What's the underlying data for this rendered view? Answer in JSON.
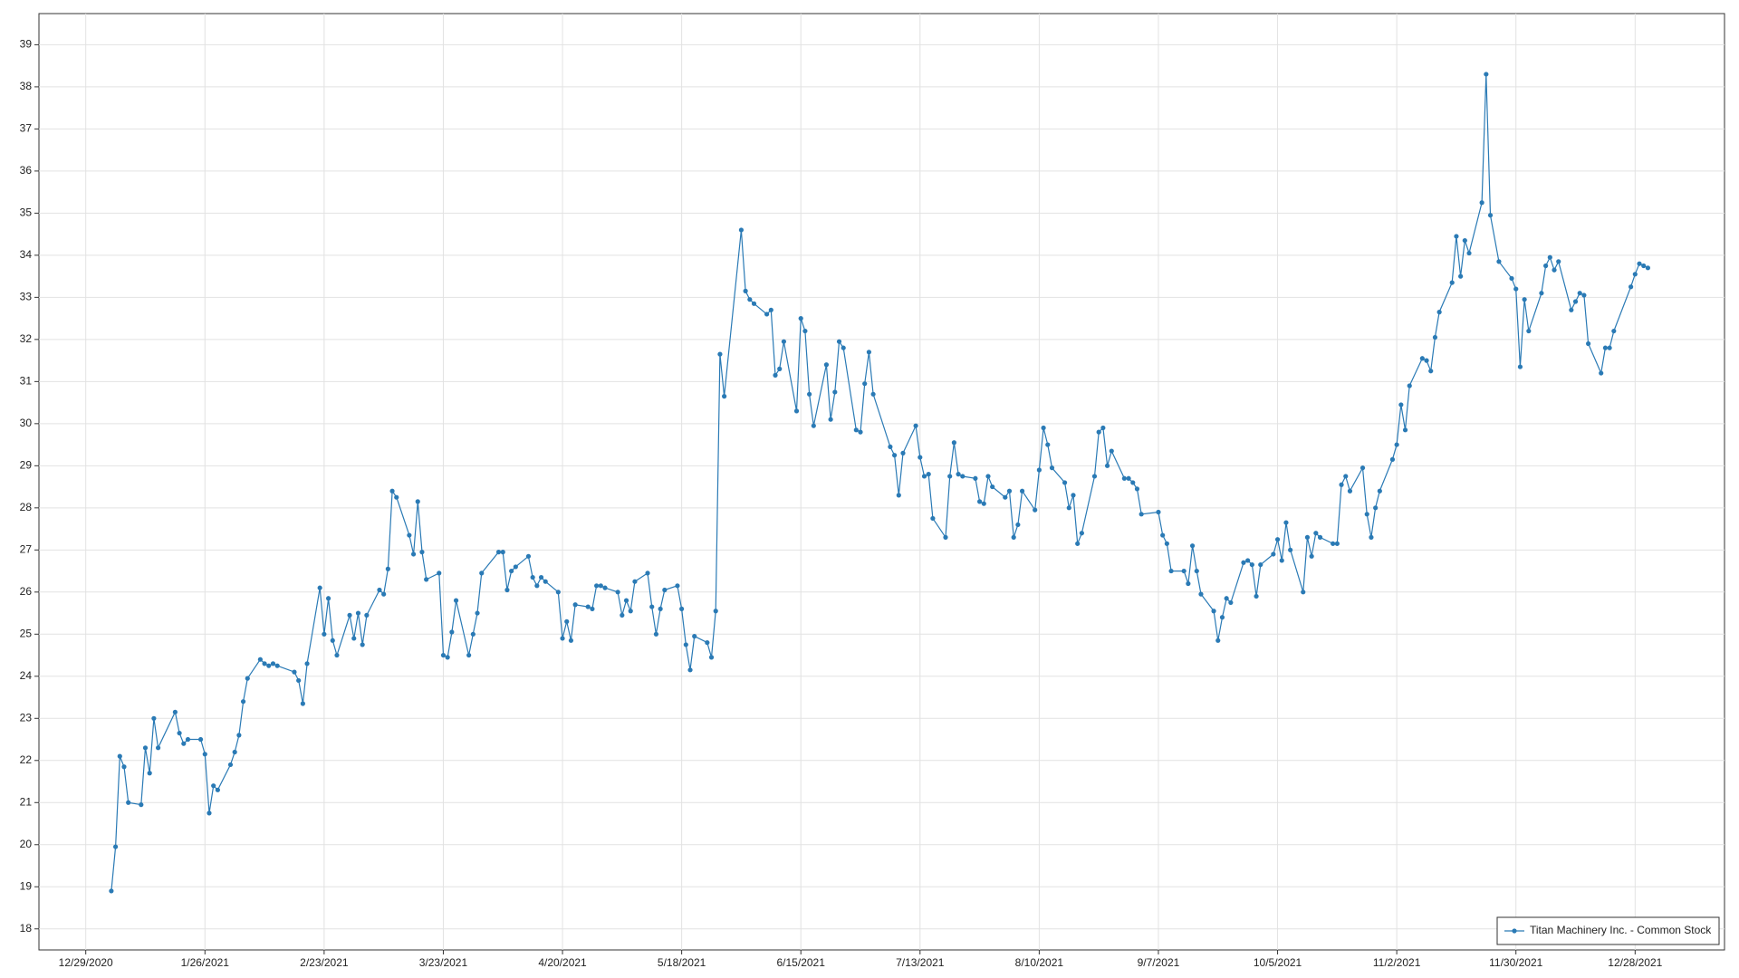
{
  "chart_data": {
    "type": "line",
    "x": [
      "1/4/2021",
      "1/5/2021",
      "1/6/2021",
      "1/7/2021",
      "1/8/2021",
      "1/11/2021",
      "1/12/2021",
      "1/13/2021",
      "1/14/2021",
      "1/15/2021",
      "1/19/2021",
      "1/20/2021",
      "1/21/2021",
      "1/22/2021",
      "1/25/2021",
      "1/26/2021",
      "1/27/2021",
      "1/28/2021",
      "1/29/2021",
      "2/1/2021",
      "2/2/2021",
      "2/3/2021",
      "2/4/2021",
      "2/5/2021",
      "2/8/2021",
      "2/9/2021",
      "2/10/2021",
      "2/11/2021",
      "2/12/2021",
      "2/16/2021",
      "2/17/2021",
      "2/18/2021",
      "2/19/2021",
      "2/22/2021",
      "2/23/2021",
      "2/24/2021",
      "2/25/2021",
      "2/26/2021",
      "3/1/2021",
      "3/2/2021",
      "3/3/2021",
      "3/4/2021",
      "3/5/2021",
      "3/8/2021",
      "3/9/2021",
      "3/10/2021",
      "3/11/2021",
      "3/12/2021",
      "3/15/2021",
      "3/16/2021",
      "3/17/2021",
      "3/18/2021",
      "3/19/2021",
      "3/22/2021",
      "3/23/2021",
      "3/24/2021",
      "3/25/2021",
      "3/26/2021",
      "3/29/2021",
      "3/30/2021",
      "3/31/2021",
      "4/1/2021",
      "4/5/2021",
      "4/6/2021",
      "4/7/2021",
      "4/8/2021",
      "4/9/2021",
      "4/12/2021",
      "4/13/2021",
      "4/14/2021",
      "4/15/2021",
      "4/16/2021",
      "4/19/2021",
      "4/20/2021",
      "4/21/2021",
      "4/22/2021",
      "4/23/2021",
      "4/26/2021",
      "4/27/2021",
      "4/28/2021",
      "4/29/2021",
      "4/30/2021",
      "5/3/2021",
      "5/4/2021",
      "5/5/2021",
      "5/6/2021",
      "5/7/2021",
      "5/10/2021",
      "5/11/2021",
      "5/12/2021",
      "5/13/2021",
      "5/14/2021",
      "5/17/2021",
      "5/18/2021",
      "5/19/2021",
      "5/20/2021",
      "5/21/2021",
      "5/24/2021",
      "5/25/2021",
      "5/26/2021",
      "5/27/2021",
      "5/28/2021",
      "6/1/2021",
      "6/2/2021",
      "6/3/2021",
      "6/4/2021",
      "6/7/2021",
      "6/8/2021",
      "6/9/2021",
      "6/10/2021",
      "6/11/2021",
      "6/14/2021",
      "6/15/2021",
      "6/16/2021",
      "6/17/2021",
      "6/18/2021",
      "6/21/2021",
      "6/22/2021",
      "6/23/2021",
      "6/24/2021",
      "6/25/2021",
      "6/28/2021",
      "6/29/2021",
      "6/30/2021",
      "7/1/2021",
      "7/2/2021",
      "7/6/2021",
      "7/7/2021",
      "7/8/2021",
      "7/9/2021",
      "7/12/2021",
      "7/13/2021",
      "7/14/2021",
      "7/15/2021",
      "7/16/2021",
      "7/19/2021",
      "7/20/2021",
      "7/21/2021",
      "7/22/2021",
      "7/23/2021",
      "7/26/2021",
      "7/27/2021",
      "7/28/2021",
      "7/29/2021",
      "7/30/2021",
      "8/2/2021",
      "8/3/2021",
      "8/4/2021",
      "8/5/2021",
      "8/6/2021",
      "8/9/2021",
      "8/10/2021",
      "8/11/2021",
      "8/12/2021",
      "8/13/2021",
      "8/16/2021",
      "8/17/2021",
      "8/18/2021",
      "8/19/2021",
      "8/20/2021",
      "8/23/2021",
      "8/24/2021",
      "8/25/2021",
      "8/26/2021",
      "8/27/2021",
      "8/30/2021",
      "8/31/2021",
      "9/1/2021",
      "9/2/2021",
      "9/3/2021",
      "9/7/2021",
      "9/8/2021",
      "9/9/2021",
      "9/10/2021",
      "9/13/2021",
      "9/14/2021",
      "9/15/2021",
      "9/16/2021",
      "9/17/2021",
      "9/20/2021",
      "9/21/2021",
      "9/22/2021",
      "9/23/2021",
      "9/24/2021",
      "9/27/2021",
      "9/28/2021",
      "9/29/2021",
      "9/30/2021",
      "10/1/2021",
      "10/4/2021",
      "10/5/2021",
      "10/6/2021",
      "10/7/2021",
      "10/8/2021",
      "10/11/2021",
      "10/12/2021",
      "10/13/2021",
      "10/14/2021",
      "10/15/2021",
      "10/18/2021",
      "10/19/2021",
      "10/20/2021",
      "10/21/2021",
      "10/22/2021",
      "10/25/2021",
      "10/26/2021",
      "10/27/2021",
      "10/28/2021",
      "10/29/2021",
      "11/1/2021",
      "11/2/2021",
      "11/3/2021",
      "11/4/2021",
      "11/5/2021",
      "11/8/2021",
      "11/9/2021",
      "11/10/2021",
      "11/11/2021",
      "11/12/2021",
      "11/15/2021",
      "11/16/2021",
      "11/17/2021",
      "11/18/2021",
      "11/19/2021",
      "11/22/2021",
      "11/23/2021",
      "11/24/2021",
      "11/26/2021",
      "11/29/2021",
      "11/30/2021",
      "12/1/2021",
      "12/2/2021",
      "12/3/2021",
      "12/6/2021",
      "12/7/2021",
      "12/8/2021",
      "12/9/2021",
      "12/10/2021",
      "12/13/2021",
      "12/14/2021",
      "12/15/2021",
      "12/16/2021",
      "12/17/2021",
      "12/20/2021",
      "12/21/2021",
      "12/22/2021",
      "12/23/2021",
      "12/27/2021",
      "12/28/2021",
      "12/29/2021",
      "12/30/2021",
      "12/31/2021"
    ],
    "series": [
      {
        "name": "Titan Machinery Inc. - Common Stock",
        "color": "#2a7ab5",
        "values": [
          18.9,
          19.95,
          22.1,
          21.85,
          21.0,
          20.95,
          22.3,
          21.7,
          23.0,
          22.3,
          23.15,
          22.65,
          22.4,
          22.5,
          22.5,
          22.15,
          20.75,
          21.4,
          21.3,
          21.9,
          22.2,
          22.6,
          23.4,
          23.95,
          24.4,
          24.3,
          24.25,
          24.3,
          24.25,
          24.1,
          23.9,
          23.35,
          24.3,
          26.1,
          25.0,
          25.85,
          24.85,
          24.5,
          25.45,
          24.9,
          25.5,
          24.75,
          25.45,
          26.05,
          25.95,
          26.55,
          28.4,
          28.25,
          27.35,
          26.9,
          28.15,
          26.95,
          26.3,
          26.45,
          24.5,
          24.45,
          25.05,
          25.8,
          24.5,
          25.0,
          25.5,
          26.45,
          26.95,
          26.95,
          26.05,
          26.5,
          26.6,
          26.85,
          26.35,
          26.15,
          26.35,
          26.25,
          26.0,
          24.9,
          25.3,
          24.85,
          25.7,
          25.65,
          25.6,
          26.15,
          26.15,
          26.1,
          26.0,
          25.45,
          25.8,
          25.55,
          26.25,
          26.45,
          25.65,
          25.0,
          25.6,
          26.05,
          26.15,
          25.6,
          24.75,
          24.15,
          24.95,
          24.8,
          24.45,
          25.55,
          31.65,
          30.65,
          34.6,
          33.15,
          32.95,
          32.85,
          32.6,
          32.7,
          31.15,
          31.3,
          31.95,
          30.3,
          32.5,
          32.2,
          30.7,
          29.95,
          31.4,
          30.1,
          30.75,
          31.95,
          31.8,
          29.85,
          29.8,
          30.95,
          31.7,
          30.7,
          29.45,
          29.25,
          28.3,
          29.3,
          29.95,
          29.2,
          28.75,
          28.8,
          27.75,
          27.3,
          28.75,
          29.55,
          28.8,
          28.75,
          28.7,
          28.15,
          28.1,
          28.75,
          28.5,
          28.25,
          28.4,
          27.3,
          27.6,
          28.4,
          27.95,
          28.9,
          29.9,
          29.5,
          28.95,
          28.6,
          28.0,
          28.3,
          27.15,
          27.4,
          28.75,
          29.8,
          29.9,
          29.0,
          29.35,
          28.7,
          28.7,
          28.6,
          28.45,
          27.85,
          27.9,
          27.35,
          27.15,
          26.5,
          26.5,
          26.2,
          27.1,
          26.5,
          25.95,
          25.55,
          24.85,
          25.4,
          25.85,
          25.75,
          26.7,
          26.75,
          26.65,
          25.9,
          26.65,
          26.9,
          27.25,
          26.75,
          27.65,
          27.0,
          26.0,
          27.3,
          26.85,
          27.4,
          27.3,
          27.15,
          27.15,
          28.55,
          28.75,
          28.4,
          28.95,
          27.85,
          27.3,
          28.0,
          28.4,
          29.15,
          29.5,
          30.45,
          29.85,
          30.9,
          31.55,
          31.5,
          31.25,
          32.05,
          32.65,
          33.35,
          34.45,
          33.5,
          34.35,
          34.05,
          35.25,
          38.3,
          34.95,
          33.85,
          33.45,
          33.2,
          31.35,
          32.95,
          32.2,
          33.1,
          33.75,
          33.95,
          33.65,
          33.85,
          32.7,
          32.9,
          33.1,
          33.05,
          31.9,
          31.2,
          31.8,
          31.8,
          32.2,
          33.25,
          33.55,
          33.8,
          33.75,
          33.7
        ]
      }
    ],
    "xlim": [
      "12/18/2020",
      "1/18/2022"
    ],
    "xticks": [
      "12/29/2020",
      "1/26/2021",
      "2/23/2021",
      "3/23/2021",
      "4/20/2021",
      "5/18/2021",
      "6/15/2021",
      "7/13/2021",
      "8/10/2021",
      "9/7/2021",
      "10/5/2021",
      "11/2/2021",
      "11/30/2021",
      "12/28/2021"
    ],
    "ylim": [
      17.5,
      39.74
    ],
    "yticks": [
      18,
      19,
      20,
      21,
      22,
      23,
      24,
      25,
      26,
      27,
      28,
      29,
      30,
      31,
      32,
      33,
      34,
      35,
      36,
      37,
      38,
      39
    ],
    "grid": true,
    "legend": "bottom-right"
  }
}
